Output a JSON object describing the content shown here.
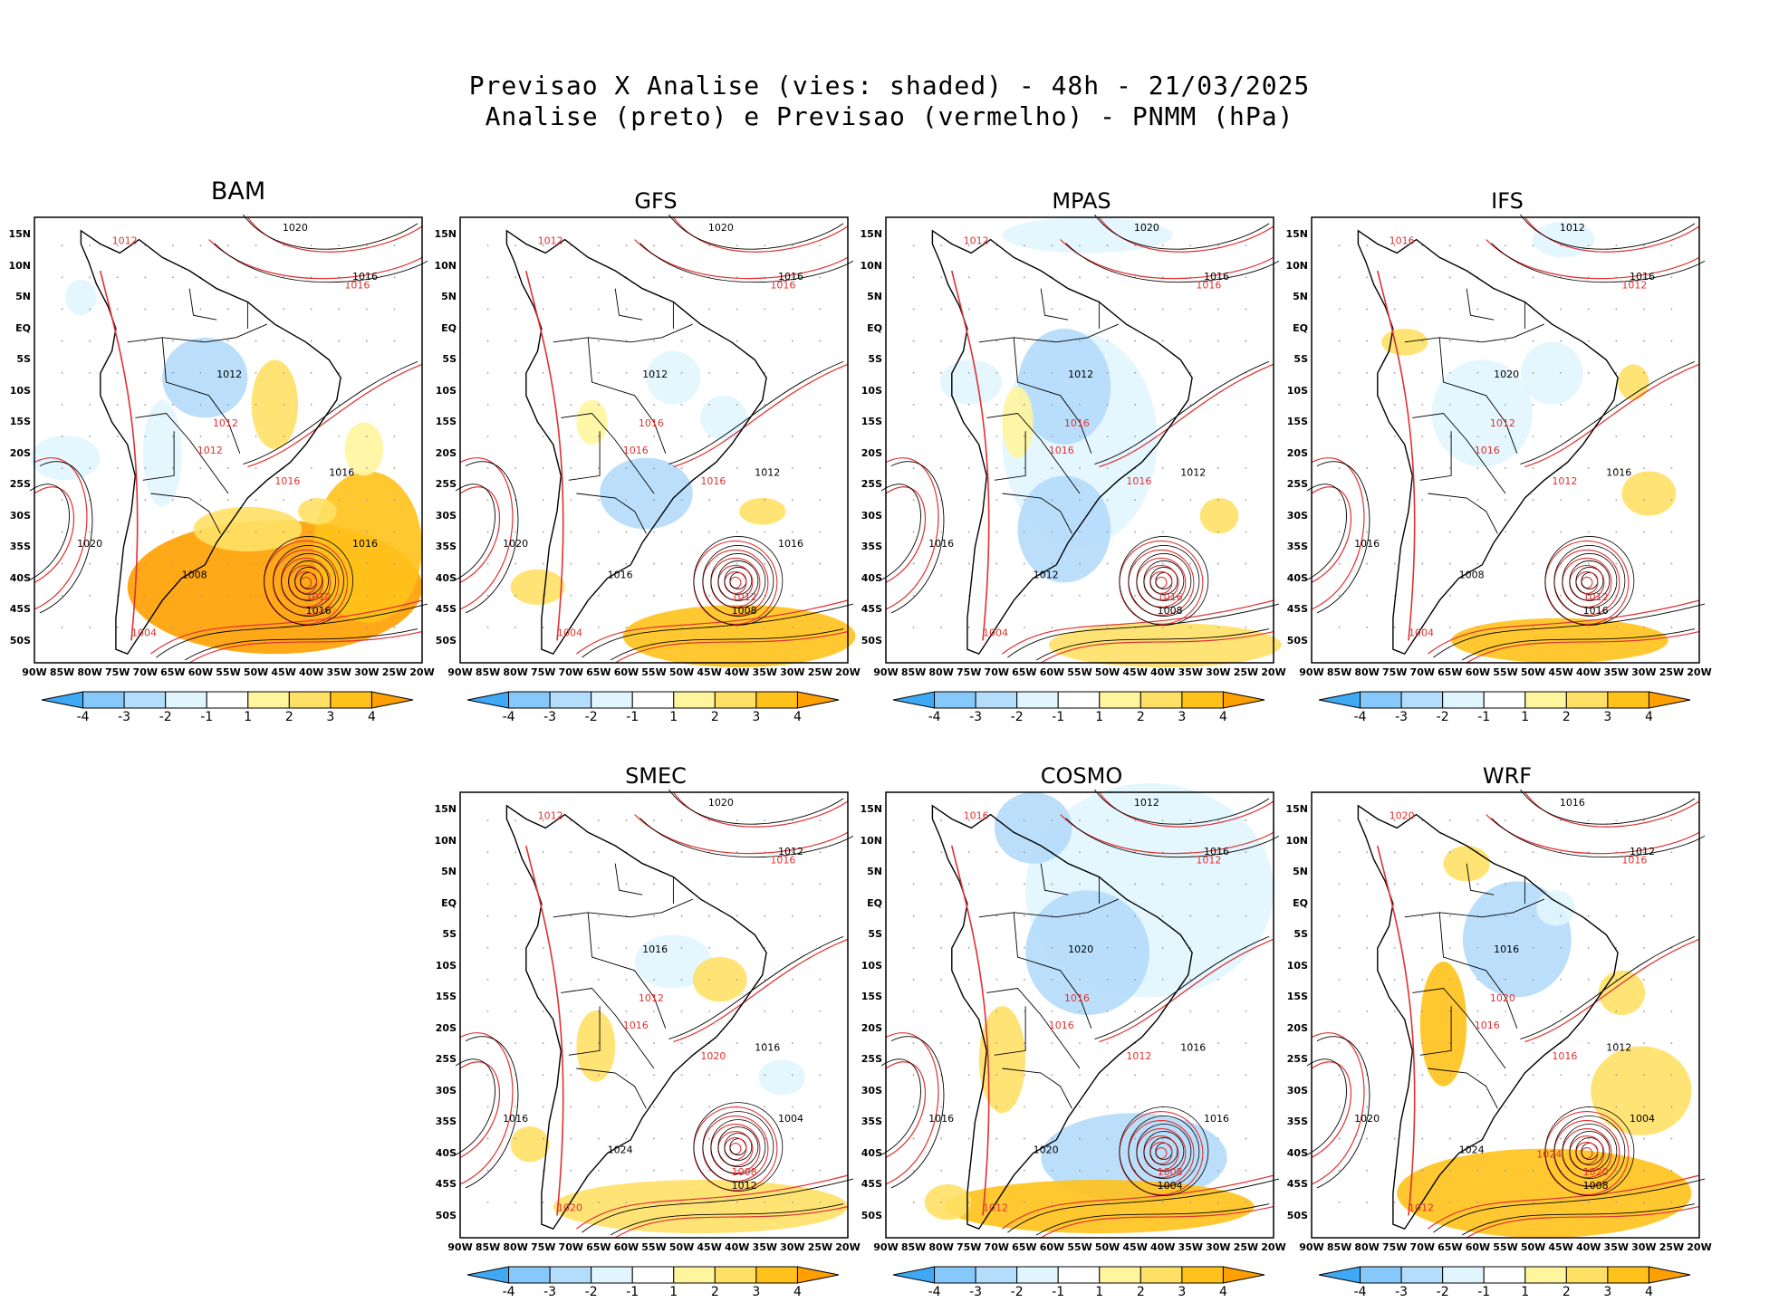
{
  "title": {
    "line1": "Previsao X Analise (vies: shaded) - 48h - 21/03/2025",
    "line2": "Analise (preto) e Previsao (vermelho) - PNMM (hPa)"
  },
  "axes": {
    "lat_labels": [
      "15N",
      "10N",
      "5N",
      "EQ",
      "5S",
      "10S",
      "15S",
      "20S",
      "25S",
      "30S",
      "35S",
      "40S",
      "45S",
      "50S"
    ],
    "lon_labels": [
      "90W",
      "85W",
      "80W",
      "75W",
      "70W",
      "65W",
      "60W",
      "55W",
      "50W",
      "45W",
      "40W",
      "35W",
      "30W",
      "25W",
      "20W"
    ]
  },
  "colorbar": {
    "labels": [
      "-4",
      "-3",
      "-2",
      "-1",
      "1",
      "2",
      "3",
      "4"
    ],
    "colors": [
      "#3fa9f5",
      "#87c8fa",
      "#b4dcfb",
      "#e1f5fe",
      "#ffffff",
      "#fff59d",
      "#ffe066",
      "#ffc21a",
      "#ffa000"
    ]
  },
  "colors": {
    "analysis_line": "#000000",
    "forecast_line": "#e03030",
    "coast": "#000000",
    "grid": "#9a9a9a"
  },
  "panels": [
    {
      "id": "bam",
      "title": "BAM",
      "labels": [
        "1020",
        "1012",
        "1016",
        "1016",
        "1012",
        "1012",
        "1016",
        "1016",
        "1020",
        "1012",
        "1008",
        "1012",
        "1016",
        "1004",
        "1016"
      ]
    },
    {
      "id": "gfs",
      "title": "GFS",
      "labels": [
        "1020",
        "1012",
        "1016",
        "1016",
        "1012",
        "1016",
        "1012",
        "1016",
        "1020",
        "1016",
        "1016",
        "1012",
        "1008",
        "1004",
        "1016"
      ]
    },
    {
      "id": "mpas",
      "title": "MPAS",
      "labels": [
        "1020",
        "1012",
        "1016",
        "1016",
        "1012",
        "1016",
        "1012",
        "1016",
        "1016",
        "1016",
        "1012",
        "1016",
        "1008",
        "1004"
      ]
    },
    {
      "id": "ifs",
      "title": "IFS",
      "labels": [
        "1012",
        "1016",
        "1016",
        "1012",
        "1020",
        "1012",
        "1016",
        "1012",
        "1016",
        "1016",
        "1008",
        "1012",
        "1016",
        "1004"
      ]
    },
    {
      "id": "smec",
      "title": "SMEC",
      "labels": [
        "1020",
        "1012",
        "1012",
        "1016",
        "1016",
        "1012",
        "1016",
        "1020",
        "1016",
        "1016",
        "1024",
        "1008",
        "1012",
        "1020",
        "1004"
      ]
    },
    {
      "id": "cosmo",
      "title": "COSMO",
      "labels": [
        "1012",
        "1016",
        "1016",
        "1012",
        "1020",
        "1016",
        "1016",
        "1012",
        "1016",
        "1016",
        "1020",
        "1008",
        "1004",
        "1012",
        "1016"
      ]
    },
    {
      "id": "wrf",
      "title": "WRF",
      "labels": [
        "1016",
        "1020",
        "1012",
        "1016",
        "1016",
        "1020",
        "1012",
        "1016",
        "1020",
        "1016",
        "1024",
        "1020",
        "1008",
        "1012",
        "1004",
        "1024"
      ]
    }
  ]
}
